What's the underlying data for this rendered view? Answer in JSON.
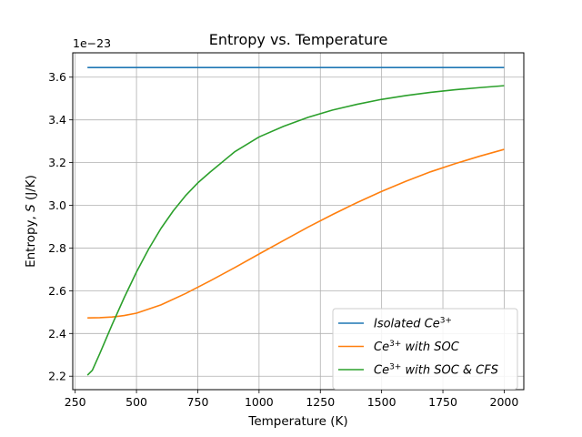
{
  "chart_data": {
    "type": "line",
    "title": "Entropy vs. Temperature",
    "xlabel": "Temperature (K)",
    "ylabel_prefix": "Entropy, ",
    "ylabel_symbol": "S",
    "ylabel_suffix": " (J/K)",
    "offset_text": "1e−23",
    "xlim": [
      240,
      2080
    ],
    "ylim": [
      2.137,
      3.714
    ],
    "xticks": [
      250,
      500,
      750,
      1000,
      1250,
      1500,
      1750,
      2000
    ],
    "yticks": [
      2.2,
      2.4,
      2.6,
      2.8,
      3.0,
      3.2,
      3.4,
      3.6
    ],
    "grid": true,
    "legend_position": "lower-right",
    "series": [
      {
        "name": "Isolated Ce3+",
        "legend_parts": [
          "Isolated Ce",
          "3+",
          ""
        ],
        "color": "#1f77b4",
        "x": [
          300,
          2000
        ],
        "y": [
          3.645,
          3.645
        ]
      },
      {
        "name": "Ce3+ with SOC",
        "legend_parts": [
          "Ce",
          "3+",
          " with SOC"
        ],
        "color": "#ff7f0e",
        "x": [
          300,
          350,
          400,
          450,
          500,
          600,
          700,
          800,
          900,
          1000,
          1100,
          1200,
          1300,
          1400,
          1500,
          1600,
          1700,
          1800,
          1900,
          2000
        ],
        "y": [
          2.473,
          2.474,
          2.477,
          2.484,
          2.495,
          2.534,
          2.587,
          2.646,
          2.708,
          2.772,
          2.835,
          2.898,
          2.957,
          3.013,
          3.065,
          3.113,
          3.157,
          3.195,
          3.23,
          3.262
        ]
      },
      {
        "name": "Ce3+ with SOC & CFS",
        "legend_parts": [
          "Ce",
          "3+",
          " with SOC & CFS"
        ],
        "color": "#2ca02c",
        "x": [
          300,
          320,
          350,
          400,
          450,
          500,
          550,
          600,
          650,
          700,
          750,
          800,
          900,
          1000,
          1100,
          1200,
          1300,
          1400,
          1500,
          1600,
          1700,
          1800,
          1900,
          2000
        ],
        "y": [
          2.205,
          2.228,
          2.305,
          2.44,
          2.568,
          2.688,
          2.796,
          2.892,
          2.974,
          3.045,
          3.105,
          3.155,
          3.25,
          3.32,
          3.37,
          3.412,
          3.446,
          3.473,
          3.496,
          3.514,
          3.529,
          3.541,
          3.551,
          3.56
        ]
      }
    ]
  }
}
